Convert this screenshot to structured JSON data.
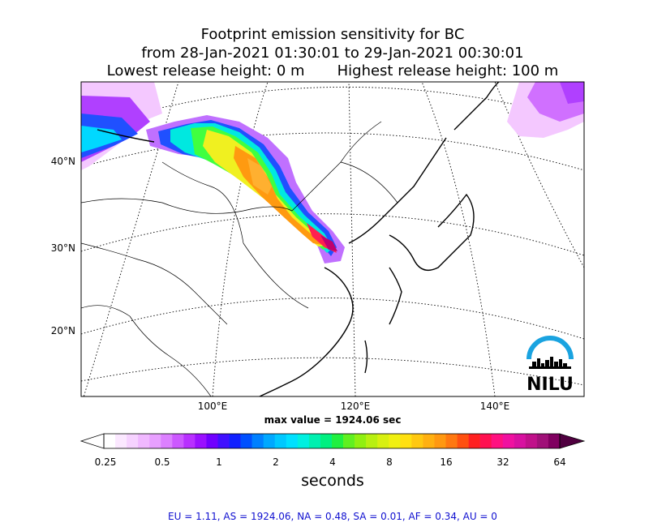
{
  "title": {
    "line1": "Footprint emission sensitivity for BC",
    "line2": "from 28-Jan-2021 01:30:01 to 29-Jan-2021 00:30:01",
    "lowest": "Lowest release height: 0 m",
    "highest": "Highest release height: 100 m"
  },
  "axes": {
    "lat_labels": [
      "40°N",
      "30°N",
      "20°N"
    ],
    "lon_labels": [
      "100°E",
      "120°E",
      "140°E"
    ]
  },
  "logo": {
    "text": "NILU",
    "arc_color": "#1aa3e0"
  },
  "max_value": "max value = 1924.06 sec",
  "colorbar": {
    "ticks": [
      "0.25",
      "0.5",
      "1",
      "2",
      "4",
      "8",
      "16",
      "32",
      "64"
    ],
    "unit": "seconds"
  },
  "regions": "EU = 1.11,  AS = 1924.06,  NA = 0.48,  SA = 0.01,  AF = 0.34,  AU = 0"
}
